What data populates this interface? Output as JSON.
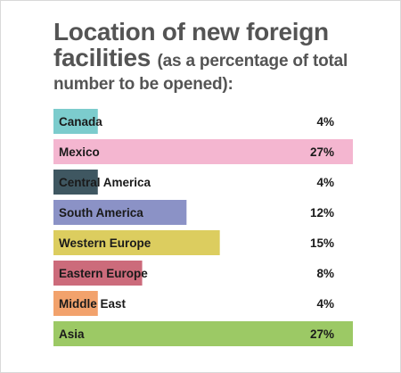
{
  "header": {
    "title_line1": "Location of new foreign",
    "title_line2": "facilities",
    "subtitle_part1": "(as a percentage of total",
    "subtitle_part2": "number to be opened):"
  },
  "chart_data": {
    "type": "bar",
    "orientation": "horizontal",
    "title": "Location of new foreign facilities",
    "subtitle": "(as a percentage of total number to be opened):",
    "unit": "%",
    "categories": [
      "Canada",
      "Mexico",
      "Central America",
      "South America",
      "Western Europe",
      "Eastern Europe",
      "Middle East",
      "Asia"
    ],
    "values": [
      4,
      27,
      4,
      12,
      15,
      8,
      4,
      27
    ],
    "value_labels": [
      "4%",
      "27%",
      "4%",
      "12%",
      "15%",
      "8%",
      "4%",
      "27%"
    ],
    "colors": [
      "#7ccccd",
      "#f4b6d0",
      "#3f5761",
      "#8b92c6",
      "#dccd5f",
      "#cc6b7b",
      "#f2a26c",
      "#9cc965"
    ],
    "xlim": [
      0,
      27
    ],
    "grid": false,
    "legend": "none"
  }
}
